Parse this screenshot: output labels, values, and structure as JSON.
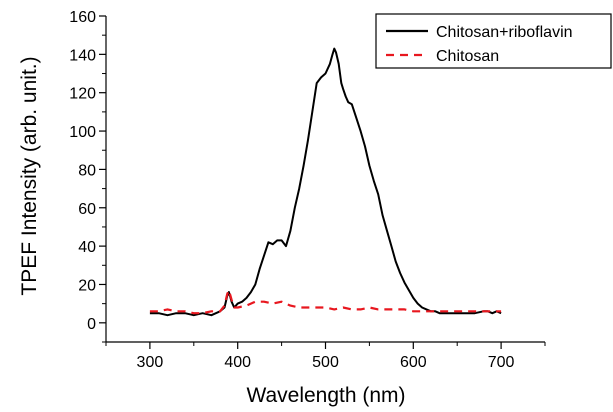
{
  "chart_data": {
    "type": "line",
    "title": "",
    "xlabel": "Wavelength (nm)",
    "ylabel": "TPEF Intensity (arb. unit.)",
    "xlim": [
      250,
      750
    ],
    "ylim": [
      -10,
      160
    ],
    "xticks": [
      300,
      400,
      500,
      600,
      700
    ],
    "yticks": [
      0,
      20,
      40,
      60,
      80,
      100,
      120,
      140,
      160
    ],
    "grid": false,
    "legend_position": "top-right",
    "series": [
      {
        "name": "Chitosan+riboflavin",
        "color": "#000000",
        "style": "solid",
        "x": [
          300,
          310,
          320,
          330,
          340,
          350,
          360,
          370,
          380,
          385,
          388,
          390,
          393,
          396,
          400,
          405,
          410,
          415,
          420,
          425,
          430,
          435,
          440,
          445,
          450,
          455,
          460,
          465,
          470,
          475,
          480,
          485,
          490,
          495,
          500,
          505,
          508,
          510,
          512,
          515,
          518,
          520,
          523,
          526,
          530,
          535,
          540,
          545,
          550,
          555,
          560,
          565,
          570,
          575,
          580,
          585,
          590,
          595,
          600,
          605,
          610,
          615,
          620,
          625,
          630,
          640,
          650,
          660,
          670,
          680,
          685,
          690,
          695,
          700
        ],
        "y": [
          5,
          5,
          4,
          5,
          5,
          4,
          5,
          4,
          6,
          8,
          14,
          16,
          11,
          8,
          10,
          11,
          13,
          16,
          20,
          28,
          35,
          42,
          41,
          43,
          43,
          40,
          48,
          60,
          70,
          82,
          95,
          110,
          125,
          128,
          130,
          135,
          140,
          143,
          141,
          135,
          125,
          122,
          118,
          115,
          114,
          107,
          100,
          92,
          82,
          74,
          67,
          56,
          48,
          40,
          32,
          26,
          21,
          17,
          13,
          10,
          8,
          7,
          6,
          6,
          5,
          5,
          5,
          5,
          5,
          6,
          6,
          5,
          6,
          5
        ]
      },
      {
        "name": "Chitosan",
        "color": "#e8171f",
        "style": "dashed",
        "x": [
          300,
          310,
          320,
          330,
          340,
          350,
          360,
          370,
          380,
          385,
          388,
          390,
          393,
          396,
          400,
          410,
          420,
          430,
          440,
          450,
          460,
          470,
          480,
          490,
          500,
          510,
          520,
          530,
          540,
          550,
          560,
          570,
          580,
          590,
          600,
          610,
          620,
          630,
          640,
          650,
          660,
          670,
          680,
          690,
          700
        ],
        "y": [
          6,
          6,
          7,
          6,
          6,
          5,
          5,
          6,
          6,
          9,
          15,
          17,
          12,
          8,
          8,
          9,
          11,
          11,
          10,
          11,
          9,
          8,
          8,
          8,
          8,
          7,
          8,
          7,
          7,
          8,
          7,
          7,
          7,
          7,
          6,
          6,
          6,
          6,
          6,
          6,
          6,
          6,
          6,
          6,
          6
        ]
      }
    ]
  }
}
